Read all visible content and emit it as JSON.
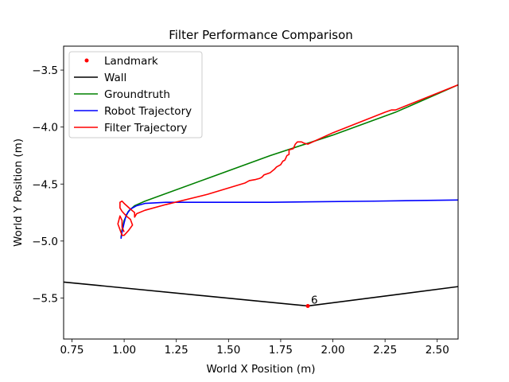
{
  "chart_data": {
    "type": "line",
    "title": "Filter Performance Comparison",
    "xlabel": "World X Position (m)",
    "ylabel": "World Y Position (m)",
    "xlim": [
      0.71,
      2.6
    ],
    "ylim": [
      -5.86,
      -3.29
    ],
    "xticks": [
      0.75,
      1.0,
      1.25,
      1.5,
      1.75,
      2.0,
      2.25,
      2.5
    ],
    "xtick_labels": [
      "0.75",
      "1.00",
      "1.25",
      "1.50",
      "1.75",
      "2.00",
      "2.25",
      "2.50"
    ],
    "yticks": [
      -3.5,
      -4.0,
      -4.5,
      -5.0,
      -5.5
    ],
    "ytick_labels": [
      "−3.5",
      "−4.0",
      "−4.5",
      "−5.0",
      "−5.5"
    ],
    "grid": false,
    "legend_position": "top-left",
    "legend": [
      {
        "label": "Landmark",
        "color": "#ff0000",
        "style": "marker"
      },
      {
        "label": "Wall",
        "color": "#000000",
        "style": "line"
      },
      {
        "label": "Groundtruth",
        "color": "#008000",
        "style": "line"
      },
      {
        "label": "Robot Trajectory",
        "color": "#0000ff",
        "style": "line"
      },
      {
        "label": "Filter Trajectory",
        "color": "#ff0000",
        "style": "line"
      }
    ],
    "series": [
      {
        "name": "Wall",
        "color": "#000000",
        "points": [
          [
            0.71,
            -5.36
          ],
          [
            1.88,
            -5.57
          ],
          [
            2.6,
            -5.4
          ]
        ]
      },
      {
        "name": "Groundtruth",
        "color": "#008000",
        "points": [
          [
            0.985,
            -4.97
          ],
          [
            0.99,
            -4.9
          ],
          [
            1.0,
            -4.82
          ],
          [
            1.02,
            -4.74
          ],
          [
            1.05,
            -4.69
          ],
          [
            1.1,
            -4.65
          ],
          [
            1.4,
            -4.45
          ],
          [
            1.7,
            -4.25
          ],
          [
            2.0,
            -4.07
          ],
          [
            2.3,
            -3.87
          ],
          [
            2.6,
            -3.63
          ]
        ]
      },
      {
        "name": "Robot Trajectory",
        "color": "#0000ff",
        "points": [
          [
            0.985,
            -4.98
          ],
          [
            0.99,
            -4.92
          ],
          [
            1.0,
            -4.84
          ],
          [
            1.01,
            -4.77
          ],
          [
            1.03,
            -4.72
          ],
          [
            1.06,
            -4.69
          ],
          [
            1.1,
            -4.67
          ],
          [
            1.2,
            -4.66
          ],
          [
            1.7,
            -4.66
          ],
          [
            2.2,
            -4.65
          ],
          [
            2.6,
            -4.64
          ]
        ]
      },
      {
        "name": "Filter Trajectory",
        "color": "#ff0000",
        "points": [
          [
            2.6,
            -3.63
          ],
          [
            2.3,
            -3.85
          ],
          [
            2.28,
            -3.85
          ],
          [
            2.25,
            -3.87
          ],
          [
            2.0,
            -4.05
          ],
          [
            1.88,
            -4.15
          ],
          [
            1.86,
            -4.14
          ],
          [
            1.85,
            -4.13
          ],
          [
            1.83,
            -4.13
          ],
          [
            1.82,
            -4.15
          ],
          [
            1.81,
            -4.19
          ],
          [
            1.79,
            -4.2
          ],
          [
            1.79,
            -4.24
          ],
          [
            1.78,
            -4.25
          ],
          [
            1.77,
            -4.29
          ],
          [
            1.76,
            -4.3
          ],
          [
            1.75,
            -4.33
          ],
          [
            1.73,
            -4.35
          ],
          [
            1.72,
            -4.37
          ],
          [
            1.7,
            -4.4
          ],
          [
            1.67,
            -4.42
          ],
          [
            1.66,
            -4.44
          ],
          [
            1.65,
            -4.45
          ],
          [
            1.63,
            -4.46
          ],
          [
            1.6,
            -4.47
          ],
          [
            1.58,
            -4.49
          ],
          [
            1.4,
            -4.59
          ],
          [
            1.2,
            -4.68
          ],
          [
            1.1,
            -4.73
          ],
          [
            1.06,
            -4.76
          ],
          [
            1.05,
            -4.79
          ],
          [
            1.05,
            -4.75
          ],
          [
            1.03,
            -4.72
          ],
          [
            1.0,
            -4.67
          ],
          [
            0.99,
            -4.65
          ],
          [
            0.98,
            -4.66
          ],
          [
            0.98,
            -4.71
          ],
          [
            0.99,
            -4.74
          ],
          [
            1.01,
            -4.78
          ],
          [
            1.03,
            -4.81
          ],
          [
            1.04,
            -4.86
          ],
          [
            1.02,
            -4.91
          ],
          [
            1.0,
            -4.95
          ],
          [
            0.99,
            -4.95
          ],
          [
            0.98,
            -4.9
          ],
          [
            0.97,
            -4.85
          ],
          [
            0.98,
            -4.78
          ],
          [
            0.99,
            -4.82
          ],
          [
            0.99,
            -4.88
          ],
          [
            1.0,
            -4.92
          ]
        ]
      }
    ],
    "landmarks": [
      {
        "x": 1.88,
        "y": -5.57,
        "label": "6",
        "color": "#ff0000"
      }
    ]
  }
}
